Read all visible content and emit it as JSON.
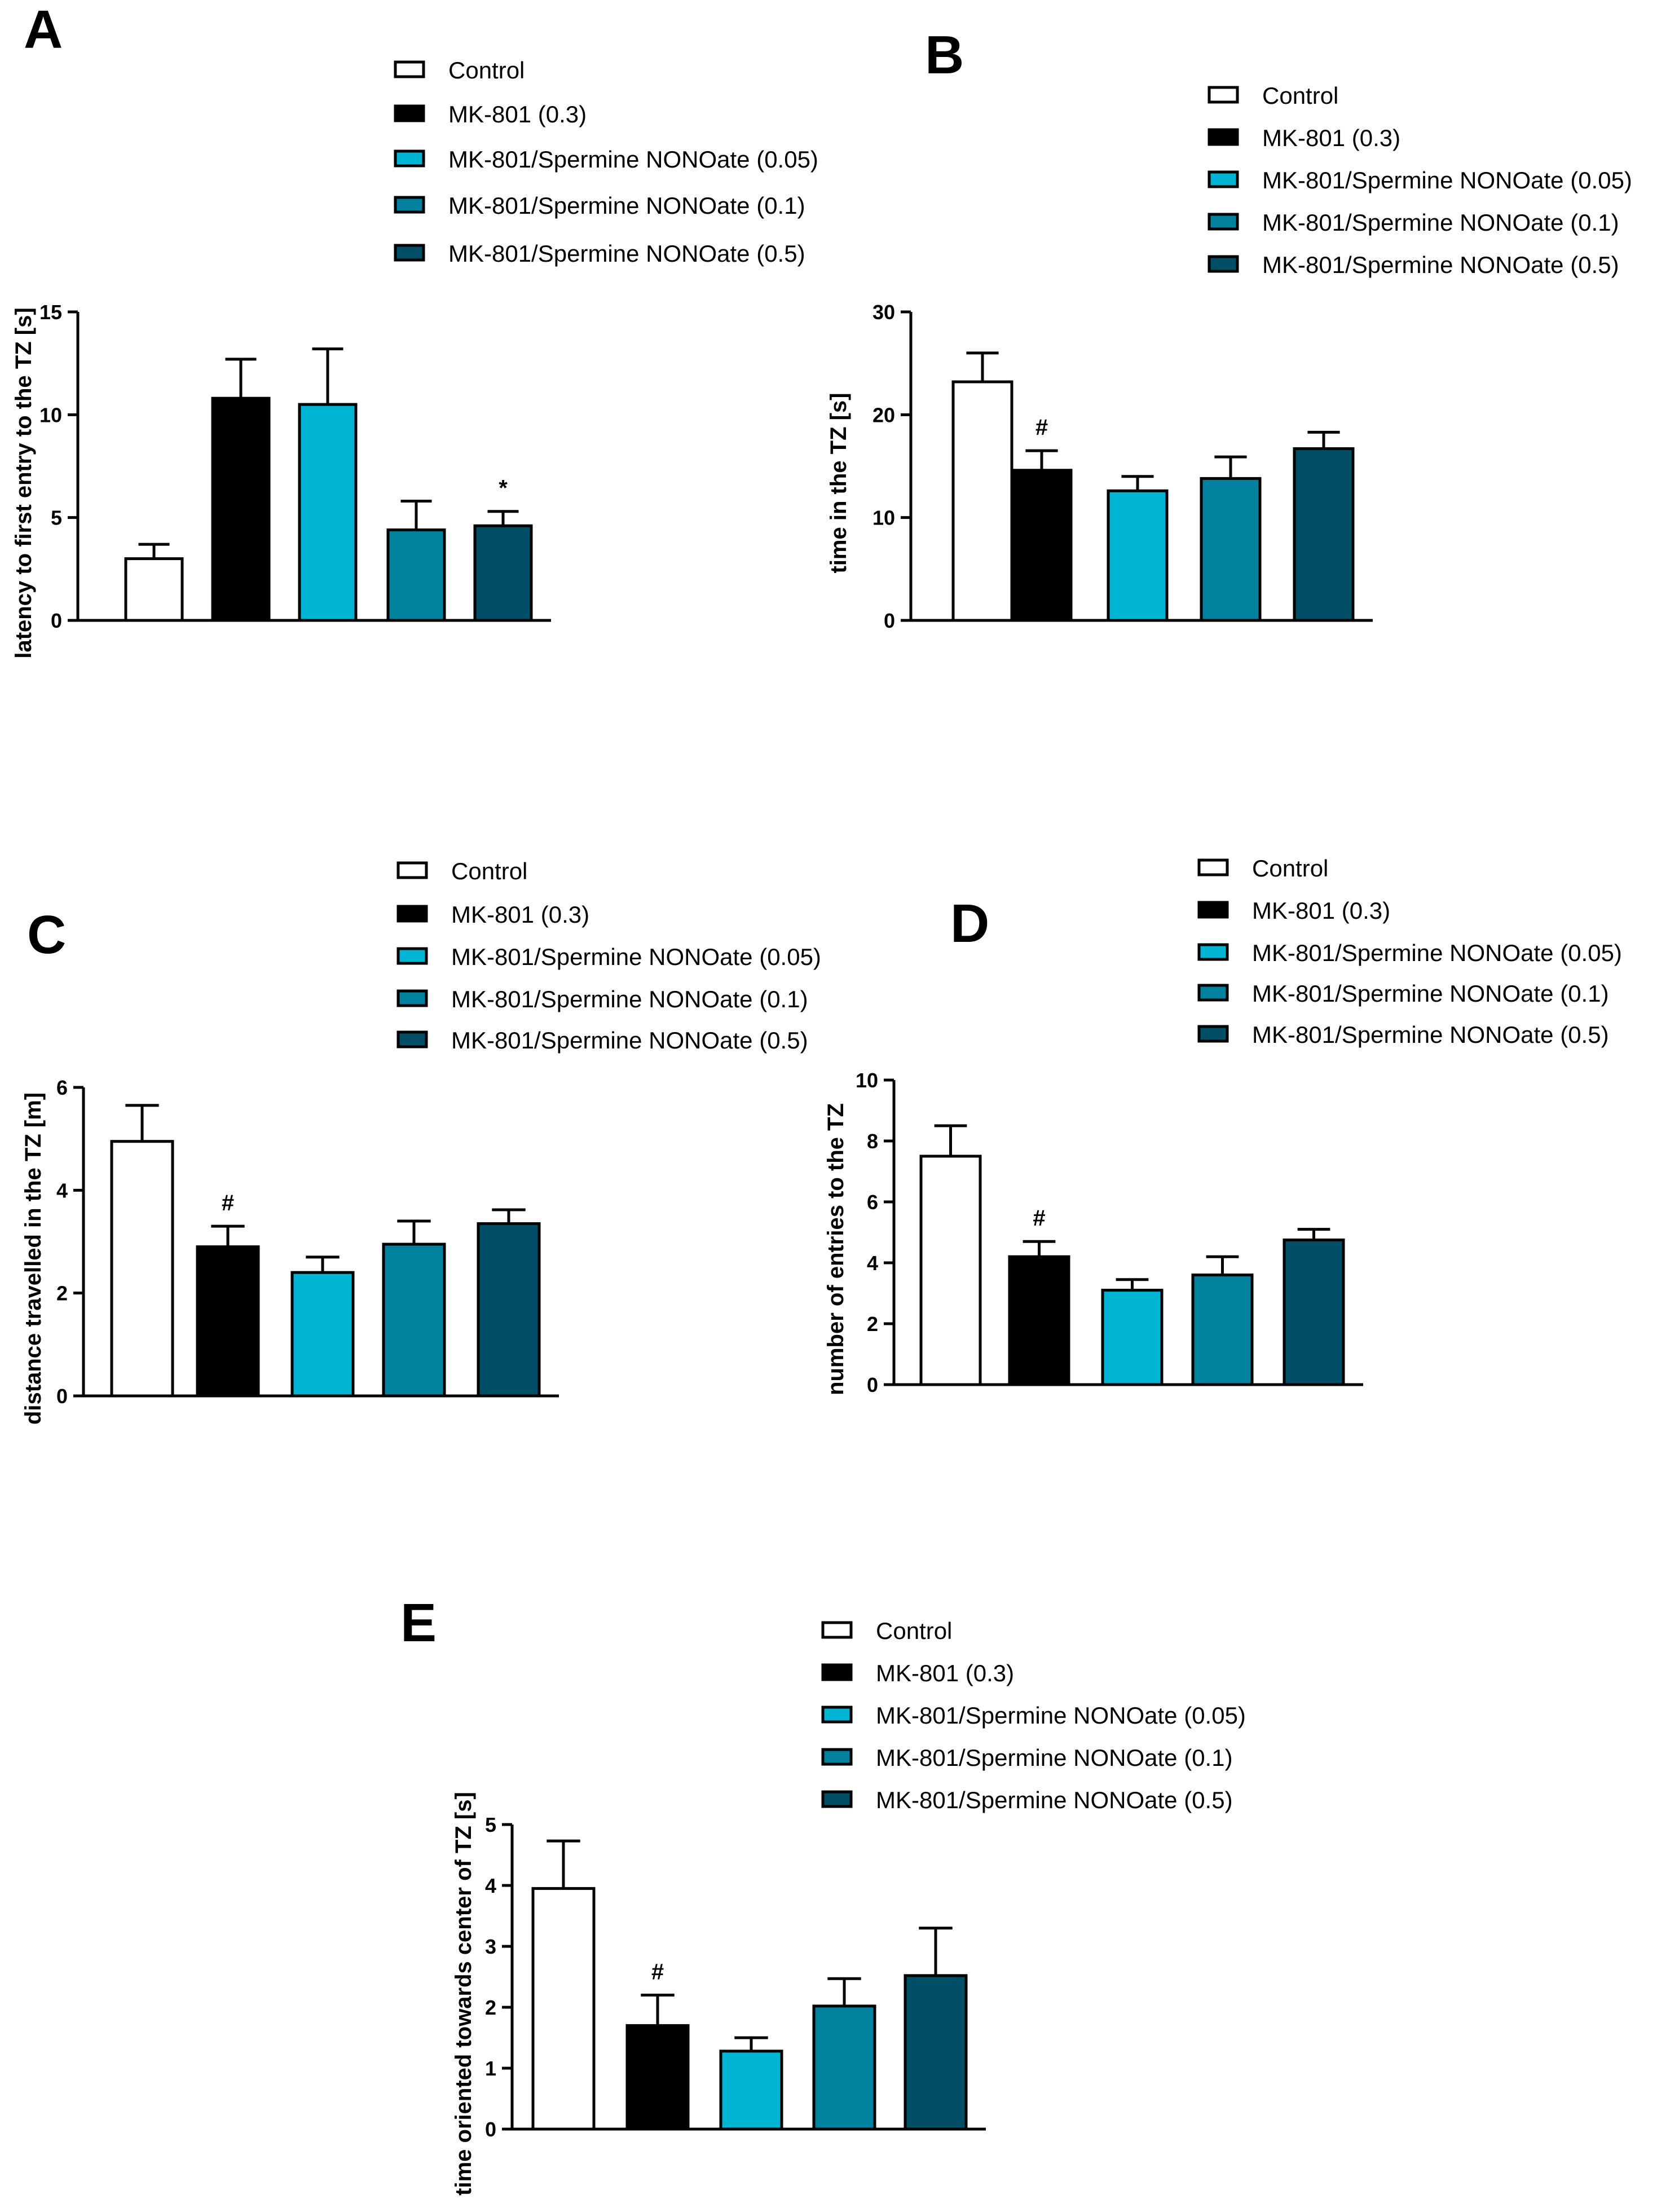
{
  "legend_entries": [
    {
      "label": "Control",
      "color": "#ffffff"
    },
    {
      "label": "MK-801 (0.3)",
      "color": "#000000"
    },
    {
      "label": "MK-801/Spermine NONOate (0.05)",
      "color": "#00b4d4"
    },
    {
      "label": "MK-801/Spermine NONOate (0.1)",
      "color": "#00819e"
    },
    {
      "label": "MK-801/Spermine NONOate (0.5)",
      "color": "#004f66"
    }
  ],
  "chart_data": [
    {
      "panel": "A",
      "type": "bar",
      "categories": [
        "Control",
        "MK-801 (0.3)",
        "MK-801/Spermine NONOate (0.05)",
        "MK-801/Spermine NONOate (0.1)",
        "MK-801/Spermine NONOate (0.5)"
      ],
      "values": [
        3.0,
        10.8,
        10.5,
        4.4,
        4.6
      ],
      "errors": [
        0.7,
        1.9,
        2.7,
        1.4,
        0.7
      ],
      "annotations": [
        "",
        "",
        "",
        "",
        "*"
      ],
      "ylabel": "latency to first entry to the TZ [s]",
      "ylim": [
        0,
        15
      ],
      "yticks": [
        0,
        5,
        10,
        15
      ],
      "tick_labels": [
        "0",
        "5",
        "10",
        "15"
      ]
    },
    {
      "panel": "B",
      "type": "bar",
      "categories": [
        "Control",
        "MK-801 (0.3)",
        "MK-801/Spermine NONOate (0.05)",
        "MK-801/Spermine NONOate (0.1)",
        "MK-801/Spermine NONOate (0.5)"
      ],
      "values": [
        23.2,
        14.6,
        12.6,
        13.8,
        16.7
      ],
      "errors": [
        2.8,
        1.9,
        1.4,
        2.1,
        1.6
      ],
      "annotations": [
        "",
        "#",
        "",
        "",
        ""
      ],
      "ylabel": "time in the TZ [s]",
      "ylim": [
        0,
        30
      ],
      "yticks": [
        0,
        10,
        20,
        30
      ],
      "tick_labels": [
        "0",
        "10",
        "20",
        "30"
      ]
    },
    {
      "panel": "C",
      "type": "bar",
      "categories": [
        "Control",
        "MK-801 (0.3)",
        "MK-801/Spermine NONOate (0.05)",
        "MK-801/Spermine NONOate (0.1)",
        "MK-801/Spermine NONOate (0.5)"
      ],
      "values": [
        4.95,
        2.9,
        2.4,
        2.95,
        3.35
      ],
      "errors": [
        0.7,
        0.4,
        0.3,
        0.45,
        0.27
      ],
      "annotations": [
        "",
        "#",
        "",
        "",
        ""
      ],
      "ylabel": "distance travelled in the TZ [m]",
      "ylim": [
        0,
        6
      ],
      "yticks": [
        0,
        2,
        4,
        6
      ],
      "tick_labels": [
        "0",
        "2",
        "4",
        "6"
      ]
    },
    {
      "panel": "D",
      "type": "bar",
      "categories": [
        "Control",
        "MK-801 (0.3)",
        "MK-801/Spermine NONOate (0.05)",
        "MK-801/Spermine NONOate (0.1)",
        "MK-801/Spermine NONOate (0.5)"
      ],
      "values": [
        7.5,
        4.2,
        3.1,
        3.6,
        4.75
      ],
      "errors": [
        1.0,
        0.5,
        0.35,
        0.6,
        0.35
      ],
      "annotations": [
        "",
        "#",
        "",
        "",
        ""
      ],
      "ylabel": "number of entries to the TZ",
      "ylim": [
        0,
        10
      ],
      "yticks": [
        0,
        2,
        4,
        6,
        8,
        10
      ],
      "tick_labels": [
        "0",
        "2",
        "4",
        "6",
        "8",
        "10"
      ]
    },
    {
      "panel": "E",
      "type": "bar",
      "categories": [
        "Control",
        "MK-801 (0.3)",
        "MK-801/Spermine NONOate (0.05)",
        "MK-801/Spermine NONOate (0.1)",
        "MK-801/Spermine NONOate (0.5)"
      ],
      "values": [
        3.95,
        1.7,
        1.28,
        2.02,
        2.52
      ],
      "errors": [
        0.78,
        0.5,
        0.22,
        0.45,
        0.78
      ],
      "annotations": [
        "",
        "#",
        "",
        "",
        ""
      ],
      "ylabel": "time oriented towards center of TZ [s]",
      "ylim": [
        0,
        5
      ],
      "yticks": [
        0,
        1,
        2,
        3,
        4,
        5
      ],
      "tick_labels": [
        "0",
        "1",
        "2",
        "3",
        "4",
        "5"
      ]
    }
  ]
}
